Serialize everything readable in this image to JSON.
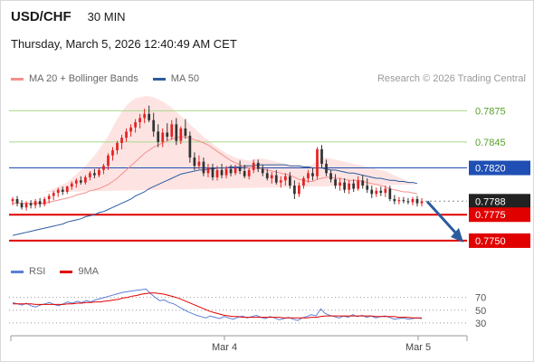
{
  "header": {
    "symbol": "USD/CHF",
    "timeframe": "30 MIN",
    "timestamp": "Thursday, March 5, 2026 12:40:49 AM CET"
  },
  "legend": {
    "ma20": {
      "label": "MA 20 + Bollinger Bands",
      "color": "#f4908c"
    },
    "ma50": {
      "label": "MA 50",
      "color": "#2c5c9e"
    }
  },
  "credit": "Research © 2026 Trading Central",
  "rsi_legend": {
    "rsi": {
      "label": "RSI",
      "color": "#5b7fd6"
    },
    "ma9": {
      "label": "9MA",
      "color": "#e00000"
    }
  },
  "colors": {
    "up_candle": "#e52222",
    "down_candle": "#333333",
    "resistance": "#a8d88a",
    "resistance_text": "#5aa02c",
    "pivot": "#1f4fb4",
    "support": "#e00000",
    "forecast_arrow": "#2c5c9e",
    "band_fill": "#fde1e0"
  },
  "chart_data": [
    {
      "type": "candlestick",
      "title": "USD/CHF 30 MIN",
      "ylim": [
        0.7736,
        0.7898
      ],
      "x_tick_labels": [
        "Mar 4",
        "Mar 5"
      ],
      "levels": [
        {
          "name": "resistance-2",
          "value": 0.7875,
          "label": "0.7875",
          "kind": "resistance"
        },
        {
          "name": "resistance-1",
          "value": 0.7845,
          "label": "0.7845",
          "kind": "resistance"
        },
        {
          "name": "pivot",
          "value": 0.782,
          "label": "0.7820",
          "kind": "pivot"
        },
        {
          "name": "last-price",
          "value": 0.7788,
          "label": "0.7788",
          "kind": "last"
        },
        {
          "name": "support-1",
          "value": 0.7775,
          "label": "0.7775",
          "kind": "support"
        },
        {
          "name": "support-2",
          "value": 0.775,
          "label": "0.7750",
          "kind": "support"
        }
      ],
      "candles": [
        [
          0.7788,
          0.7792,
          0.7784,
          0.779
        ],
        [
          0.779,
          0.7793,
          0.7783,
          0.7786
        ],
        [
          0.7786,
          0.7789,
          0.778,
          0.7782
        ],
        [
          0.7782,
          0.7788,
          0.7779,
          0.7786
        ],
        [
          0.7786,
          0.7789,
          0.7781,
          0.7784
        ],
        [
          0.7784,
          0.779,
          0.7781,
          0.7788
        ],
        [
          0.7788,
          0.7791,
          0.7782,
          0.7785
        ],
        [
          0.7785,
          0.7792,
          0.7783,
          0.779
        ],
        [
          0.779,
          0.7795,
          0.7786,
          0.7793
        ],
        [
          0.7793,
          0.7798,
          0.7789,
          0.7796
        ],
        [
          0.7796,
          0.7801,
          0.7792,
          0.7799
        ],
        [
          0.7799,
          0.7802,
          0.7794,
          0.7797
        ],
        [
          0.7797,
          0.7803,
          0.7795,
          0.7802
        ],
        [
          0.7802,
          0.7807,
          0.7799,
          0.7805
        ],
        [
          0.7805,
          0.781,
          0.7801,
          0.7808
        ],
        [
          0.7808,
          0.7812,
          0.7804,
          0.7806
        ],
        [
          0.7806,
          0.7813,
          0.7804,
          0.7811
        ],
        [
          0.7811,
          0.7817,
          0.7808,
          0.7815
        ],
        [
          0.7815,
          0.7819,
          0.781,
          0.7813
        ],
        [
          0.7813,
          0.782,
          0.7811,
          0.7818
        ],
        [
          0.7818,
          0.7824,
          0.7814,
          0.7822
        ],
        [
          0.7822,
          0.7834,
          0.7818,
          0.7832
        ],
        [
          0.7832,
          0.784,
          0.7827,
          0.7837
        ],
        [
          0.7837,
          0.7846,
          0.7833,
          0.7844
        ],
        [
          0.7844,
          0.7852,
          0.7838,
          0.7849
        ],
        [
          0.7849,
          0.7858,
          0.7845,
          0.7855
        ],
        [
          0.7855,
          0.7862,
          0.785,
          0.7859
        ],
        [
          0.7859,
          0.7867,
          0.7854,
          0.7864
        ],
        [
          0.7864,
          0.7872,
          0.7858,
          0.7868
        ],
        [
          0.7868,
          0.7877,
          0.7863,
          0.7872
        ],
        [
          0.7872,
          0.788,
          0.7864,
          0.7866
        ],
        [
          0.7866,
          0.7873,
          0.785,
          0.7855
        ],
        [
          0.7855,
          0.7862,
          0.784,
          0.7845
        ],
        [
          0.7845,
          0.7858,
          0.784,
          0.7854
        ],
        [
          0.7854,
          0.7863,
          0.7846,
          0.785
        ],
        [
          0.785,
          0.7866,
          0.7847,
          0.7862
        ],
        [
          0.7862,
          0.7868,
          0.7842,
          0.7846
        ],
        [
          0.7846,
          0.786,
          0.7843,
          0.7858
        ],
        [
          0.7858,
          0.7867,
          0.7848,
          0.7851
        ],
        [
          0.7851,
          0.7855,
          0.7825,
          0.783
        ],
        [
          0.783,
          0.7835,
          0.7818,
          0.7822
        ],
        [
          0.7822,
          0.7832,
          0.7819,
          0.7826
        ],
        [
          0.7826,
          0.783,
          0.7812,
          0.7815
        ],
        [
          0.7815,
          0.7824,
          0.7811,
          0.782
        ],
        [
          0.782,
          0.7824,
          0.7808,
          0.7811
        ],
        [
          0.7811,
          0.7822,
          0.7808,
          0.7818
        ],
        [
          0.7818,
          0.7824,
          0.781,
          0.7813
        ],
        [
          0.7813,
          0.7822,
          0.781,
          0.7819
        ],
        [
          0.7819,
          0.7823,
          0.7812,
          0.7815
        ],
        [
          0.7815,
          0.7823,
          0.7813,
          0.782
        ],
        [
          0.782,
          0.7827,
          0.7814,
          0.7817
        ],
        [
          0.7817,
          0.7823,
          0.781,
          0.7812
        ],
        [
          0.7812,
          0.782,
          0.7809,
          0.7818
        ],
        [
          0.7818,
          0.7828,
          0.7815,
          0.7825
        ],
        [
          0.7825,
          0.7828,
          0.7816,
          0.7819
        ],
        [
          0.7819,
          0.7823,
          0.7812,
          0.7815
        ],
        [
          0.7815,
          0.7819,
          0.7808,
          0.781
        ],
        [
          0.781,
          0.7816,
          0.7805,
          0.7813
        ],
        [
          0.7813,
          0.7818,
          0.7804,
          0.7806
        ],
        [
          0.7806,
          0.7812,
          0.7801,
          0.7808
        ],
        [
          0.7808,
          0.7815,
          0.7803,
          0.7812
        ],
        [
          0.7812,
          0.7816,
          0.78,
          0.7803
        ],
        [
          0.7803,
          0.7808,
          0.779,
          0.7795
        ],
        [
          0.7795,
          0.7806,
          0.7792,
          0.7803
        ],
        [
          0.7803,
          0.7812,
          0.78,
          0.781
        ],
        [
          0.781,
          0.7818,
          0.7806,
          0.7815
        ],
        [
          0.7815,
          0.782,
          0.7808,
          0.7812
        ],
        [
          0.7812,
          0.784,
          0.7809,
          0.7838
        ],
        [
          0.7838,
          0.7842,
          0.782,
          0.7824
        ],
        [
          0.7824,
          0.7828,
          0.7812,
          0.7815
        ],
        [
          0.7815,
          0.7818,
          0.7806,
          0.7809
        ],
        [
          0.7809,
          0.7814,
          0.78,
          0.7803
        ],
        [
          0.7803,
          0.781,
          0.7798,
          0.7806
        ],
        [
          0.7806,
          0.781,
          0.7796,
          0.7799
        ],
        [
          0.7799,
          0.7808,
          0.7795,
          0.7805
        ],
        [
          0.7805,
          0.7809,
          0.7797,
          0.78
        ],
        [
          0.78,
          0.7812,
          0.7798,
          0.7808
        ],
        [
          0.7808,
          0.7813,
          0.78,
          0.7803
        ],
        [
          0.7803,
          0.781,
          0.7796,
          0.7799
        ],
        [
          0.7799,
          0.7803,
          0.7791,
          0.7795
        ],
        [
          0.7795,
          0.7801,
          0.7792,
          0.7798
        ],
        [
          0.7798,
          0.7802,
          0.7793,
          0.7796
        ],
        [
          0.7796,
          0.7803,
          0.7792,
          0.78
        ],
        [
          0.78,
          0.7803,
          0.7788,
          0.779
        ],
        [
          0.779,
          0.7794,
          0.7785,
          0.7788
        ],
        [
          0.7788,
          0.7792,
          0.7785,
          0.7789
        ],
        [
          0.7789,
          0.7792,
          0.7786,
          0.7788
        ],
        [
          0.7788,
          0.7791,
          0.7785,
          0.7787
        ],
        [
          0.7787,
          0.7792,
          0.7784,
          0.779
        ],
        [
          0.779,
          0.7793,
          0.7783,
          0.7786
        ],
        [
          0.7786,
          0.7791,
          0.7783,
          0.7788
        ]
      ],
      "ma20": [
        0.7786,
        0.7786,
        0.7786,
        0.7786,
        0.7786,
        0.7786,
        0.7786,
        0.7786,
        0.7787,
        0.7788,
        0.7789,
        0.779,
        0.7791,
        0.7792,
        0.7794,
        0.7795,
        0.7796,
        0.7798,
        0.7799,
        0.78,
        0.7802,
        0.7804,
        0.7807,
        0.781,
        0.7814,
        0.7818,
        0.7822,
        0.7826,
        0.783,
        0.7834,
        0.7837,
        0.784,
        0.7842,
        0.7844,
        0.7846,
        0.7848,
        0.7849,
        0.785,
        0.785,
        0.7849,
        0.7847,
        0.7846,
        0.7844,
        0.7842,
        0.7839,
        0.7836,
        0.7833,
        0.783,
        0.7827,
        0.7825,
        0.7823,
        0.7821,
        0.782,
        0.782,
        0.782,
        0.7819,
        0.7818,
        0.7817,
        0.7816,
        0.7815,
        0.7814,
        0.7813,
        0.7811,
        0.7809,
        0.7808,
        0.7807,
        0.7807,
        0.7809,
        0.781,
        0.7811,
        0.7811,
        0.781,
        0.781,
        0.7809,
        0.7808,
        0.7808,
        0.7808,
        0.7807,
        0.7806,
        0.7805,
        0.7804,
        0.7803,
        0.7802,
        0.78,
        0.7799,
        0.7798,
        0.7797,
        0.7797,
        0.7796,
        0.7795
      ],
      "bb_upper": [
        0.7796,
        0.7796,
        0.7796,
        0.7796,
        0.7796,
        0.7796,
        0.7796,
        0.7797,
        0.7798,
        0.78,
        0.7802,
        0.7804,
        0.7806,
        0.781,
        0.7814,
        0.7818,
        0.7822,
        0.7827,
        0.7832,
        0.7838,
        0.7844,
        0.7851,
        0.7859,
        0.7867,
        0.7874,
        0.788,
        0.7884,
        0.7887,
        0.7888,
        0.7889,
        0.7889,
        0.7888,
        0.7886,
        0.7884,
        0.7881,
        0.7878,
        0.7874,
        0.787,
        0.7866,
        0.7862,
        0.7858,
        0.7854,
        0.785,
        0.7847,
        0.7843,
        0.784,
        0.7837,
        0.7834,
        0.7832,
        0.783,
        0.7829,
        0.7828,
        0.7827,
        0.7828,
        0.7829,
        0.7829,
        0.7828,
        0.7827,
        0.7826,
        0.7825,
        0.7824,
        0.7823,
        0.7822,
        0.7822,
        0.7822,
        0.7822,
        0.7823,
        0.7828,
        0.783,
        0.783,
        0.7829,
        0.7828,
        0.7827,
        0.7826,
        0.7825,
        0.7824,
        0.7823,
        0.7822,
        0.7821,
        0.782,
        0.7819,
        0.7818,
        0.7817,
        0.7815,
        0.7813,
        0.7811,
        0.7809,
        0.7807,
        0.7805,
        0.7804
      ],
      "bb_lower": [
        0.7776,
        0.7776,
        0.7776,
        0.7776,
        0.7776,
        0.7776,
        0.7776,
        0.7775,
        0.7776,
        0.7776,
        0.7776,
        0.7776,
        0.7776,
        0.7774,
        0.7774,
        0.7772,
        0.777,
        0.7769,
        0.7766,
        0.7762,
        0.776,
        0.7757,
        0.7755,
        0.7753,
        0.7754,
        0.7756,
        0.776,
        0.7765,
        0.7772,
        0.7779,
        0.7785,
        0.7792,
        0.7798,
        0.7804,
        0.7811,
        0.7818,
        0.7824,
        0.783,
        0.7834,
        0.7836,
        0.7836,
        0.7838,
        0.7838,
        0.7837,
        0.7835,
        0.7832,
        0.7829,
        0.7826,
        0.7822,
        0.782,
        0.7817,
        0.7814,
        0.7813,
        0.7812,
        0.7811,
        0.7809,
        0.7808,
        0.7807,
        0.7806,
        0.7805,
        0.7804,
        0.7803,
        0.78,
        0.7796,
        0.7794,
        0.7792,
        0.7791,
        0.779,
        0.779,
        0.7792,
        0.7793,
        0.7792,
        0.7793,
        0.7792,
        0.7791,
        0.7792,
        0.7793,
        0.7792,
        0.7791,
        0.779,
        0.7789,
        0.7788,
        0.7787,
        0.7785,
        0.7785,
        0.7785,
        0.7785,
        0.7787,
        0.7787,
        0.7786
      ],
      "ma50": [
        0.7755,
        0.7756,
        0.7757,
        0.7758,
        0.7759,
        0.776,
        0.7761,
        0.7762,
        0.7763,
        0.7764,
        0.7765,
        0.7766,
        0.7768,
        0.7769,
        0.777,
        0.7771,
        0.7773,
        0.7774,
        0.7775,
        0.7777,
        0.7778,
        0.778,
        0.7782,
        0.7784,
        0.7786,
        0.7788,
        0.779,
        0.7793,
        0.7795,
        0.7797,
        0.78,
        0.7802,
        0.7804,
        0.7806,
        0.7808,
        0.781,
        0.7812,
        0.7814,
        0.7815,
        0.7816,
        0.7817,
        0.7818,
        0.7818,
        0.7819,
        0.7819,
        0.782,
        0.782,
        0.782,
        0.7821,
        0.7821,
        0.7821,
        0.7822,
        0.7822,
        0.7822,
        0.7823,
        0.7823,
        0.7823,
        0.7823,
        0.7823,
        0.7823,
        0.7823,
        0.7822,
        0.7822,
        0.7822,
        0.7821,
        0.7821,
        0.782,
        0.782,
        0.782,
        0.7819,
        0.7818,
        0.7818,
        0.7817,
        0.7816,
        0.7815,
        0.7815,
        0.7814,
        0.7813,
        0.7812,
        0.7811,
        0.781,
        0.781,
        0.7809,
        0.7808,
        0.7808,
        0.7807,
        0.7807,
        0.7806,
        0.7806,
        0.7805
      ],
      "forecast": {
        "from": 0.7786,
        "to": 0.775
      }
    },
    {
      "type": "line",
      "title": "RSI",
      "ylim": [
        20,
        85
      ],
      "y_ticks": [
        70,
        50,
        30
      ],
      "x_tick_labels": [
        "Mar 4",
        "Mar 5"
      ],
      "series": [
        {
          "name": "RSI",
          "values": [
            62,
            60,
            58,
            61,
            57,
            55,
            58,
            60,
            62,
            59,
            57,
            60,
            63,
            61,
            64,
            62,
            65,
            63,
            66,
            68,
            70,
            72,
            74,
            76,
            78,
            79,
            80,
            81,
            82,
            83,
            76,
            70,
            65,
            66,
            62,
            60,
            56,
            52,
            48,
            45,
            42,
            40,
            38,
            41,
            39,
            37,
            40,
            38,
            36,
            39,
            41,
            38,
            40,
            42,
            39,
            37,
            40,
            38,
            35,
            37,
            39,
            36,
            34,
            38,
            40,
            43,
            41,
            52,
            45,
            42,
            40,
            38,
            41,
            39,
            43,
            40,
            42,
            39,
            41,
            38,
            40,
            41,
            39,
            36,
            37,
            38,
            36,
            37,
            38,
            37
          ]
        },
        {
          "name": "9MA",
          "values": [
            60,
            60,
            60,
            60,
            60,
            59,
            59,
            59,
            59,
            59,
            59,
            59,
            60,
            60,
            61,
            61,
            62,
            62,
            63,
            63,
            64,
            65,
            66,
            67,
            69,
            70,
            72,
            73,
            75,
            76,
            77,
            77,
            76,
            75,
            73,
            71,
            69,
            66,
            63,
            60,
            57,
            54,
            51,
            48,
            46,
            44,
            42,
            41,
            40,
            40,
            39,
            39,
            39,
            39,
            39,
            39,
            39,
            39,
            39,
            38,
            38,
            38,
            38,
            38,
            38,
            39,
            39,
            40,
            41,
            41,
            41,
            41,
            41,
            41,
            41,
            41,
            41,
            41,
            41,
            40,
            40,
            40,
            40,
            40,
            39,
            39,
            39,
            38,
            38,
            38
          ]
        }
      ]
    }
  ]
}
